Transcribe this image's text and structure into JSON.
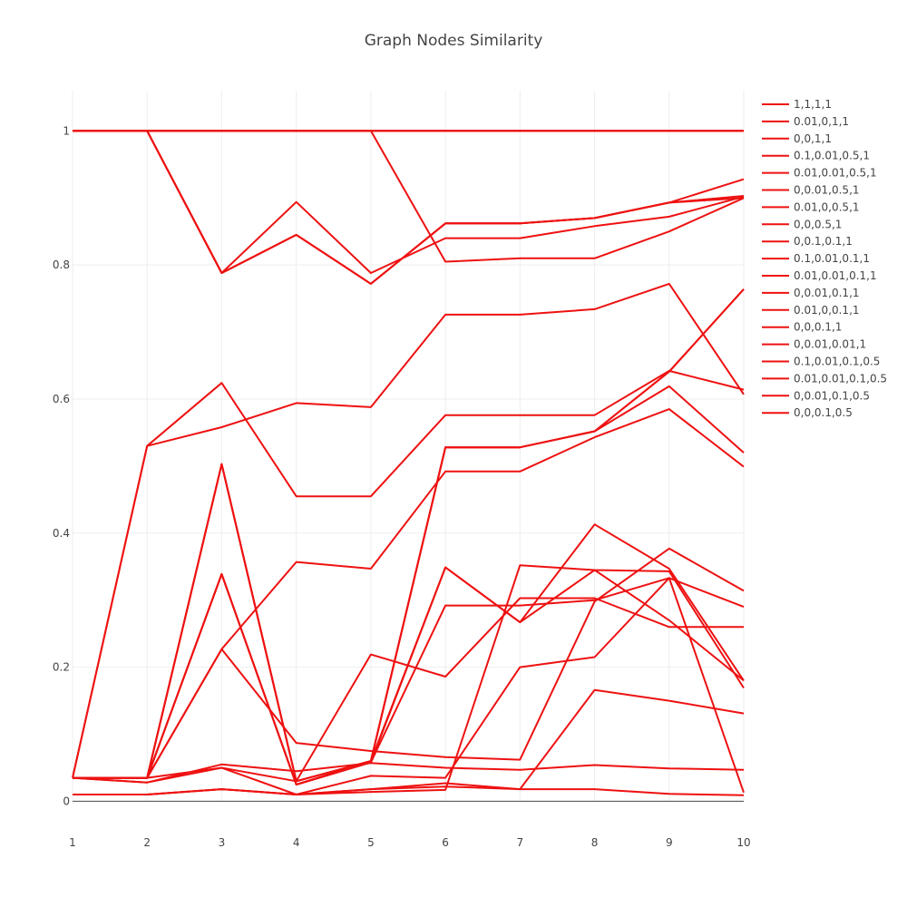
{
  "chart_data": {
    "type": "line",
    "title": "Graph Nodes Similarity",
    "xlabel": "",
    "ylabel": "",
    "x": [
      1,
      2,
      3,
      4,
      5,
      6,
      7,
      8,
      9,
      10
    ],
    "xlim": [
      1,
      10
    ],
    "ylim": [
      -0.04,
      1.06
    ],
    "x_ticks": [
      "1",
      "2",
      "3",
      "4",
      "5",
      "6",
      "7",
      "8",
      "9",
      "10"
    ],
    "y_ticks": [
      {
        "value": 0,
        "label": "0"
      },
      {
        "value": 0.2,
        "label": "0.2"
      },
      {
        "value": 0.4,
        "label": "0.4"
      },
      {
        "value": 0.6,
        "label": "0.6"
      },
      {
        "value": 0.8,
        "label": "0.8"
      },
      {
        "value": 1,
        "label": "1"
      }
    ],
    "grid": true,
    "legend_position": "right",
    "line_color": "#ee1111",
    "series": [
      {
        "name": "1,1,1,1",
        "values": [
          1,
          1,
          1,
          1,
          1,
          1,
          1,
          1,
          1,
          1
        ]
      },
      {
        "name": "0.01,0,1,1",
        "values": [
          1,
          1,
          1,
          1,
          1,
          1,
          1,
          1,
          1,
          1
        ]
      },
      {
        "name": "0,0,1,1",
        "values": [
          1,
          1,
          1,
          1,
          1,
          1,
          1,
          1,
          1,
          1
        ]
      },
      {
        "name": "0.1,0.01,0.5,1",
        "values": [
          1,
          1,
          1,
          1,
          1,
          0.805,
          0.81,
          0.81,
          0.85,
          0.9
        ]
      },
      {
        "name": "0.01,0.01,0.5,1",
        "values": [
          1,
          1,
          0.788,
          0.845,
          0.772,
          0.862,
          0.862,
          0.87,
          0.893,
          0.9
        ]
      },
      {
        "name": "0,0.01,0.5,1",
        "values": [
          1,
          1,
          0.788,
          0.845,
          0.772,
          0.862,
          0.862,
          0.87,
          0.893,
          0.928
        ]
      },
      {
        "name": "0.01,0,0.5,1",
        "values": [
          1,
          1,
          0.788,
          0.894,
          0.788,
          0.84,
          0.84,
          0.858,
          0.872,
          0.902
        ]
      },
      {
        "name": "0,0,0.5,1",
        "values": [
          1,
          1,
          0.788,
          0.845,
          0.772,
          0.862,
          0.862,
          0.87,
          0.893,
          0.903
        ]
      },
      {
        "name": "0,0.1,0.1,1",
        "values": [
          0.035,
          0.53,
          0.558,
          0.594,
          0.588,
          0.726,
          0.726,
          0.734,
          0.772,
          0.607
        ]
      },
      {
        "name": "0.1,0.01,0.1,1",
        "values": [
          0.035,
          0.53,
          0.624,
          0.455,
          0.455,
          0.576,
          0.576,
          0.576,
          0.642,
          0.614
        ]
      },
      {
        "name": "0.01,0.01,0.1,1",
        "values": [
          0.035,
          0.035,
          0.503,
          0.03,
          0.06,
          0.528,
          0.528,
          0.552,
          0.619,
          0.52
        ]
      },
      {
        "name": "0,0.01,0.1,1",
        "values": [
          0.035,
          0.035,
          0.503,
          0.03,
          0.06,
          0.528,
          0.528,
          0.552,
          0.641,
          0.764
        ]
      },
      {
        "name": "0.01,0,0.1,1",
        "values": [
          0.035,
          0.035,
          0.227,
          0.357,
          0.347,
          0.492,
          0.492,
          0.543,
          0.585,
          0.499
        ]
      },
      {
        "name": "0,0,0.1,1",
        "values": [
          0.035,
          0.035,
          0.503,
          0.03,
          0.06,
          0.528,
          0.528,
          0.552,
          0.641,
          0.764
        ]
      },
      {
        "name": "0,0.01,0.01,1",
        "values": [
          0.035,
          0.035,
          0.339,
          0.025,
          0.06,
          0.349,
          0.267,
          0.413,
          0.347,
          0.18
        ]
      },
      {
        "name": "0.1,0.01,0.1,0.5",
        "values": [
          0.035,
          0.035,
          0.227,
          0.087,
          0.075,
          0.066,
          0.062,
          0.298,
          0.377,
          0.314
        ]
      },
      {
        "name": "0.01,0.01,0.1,0.5",
        "values": [
          0.035,
          0.028,
          0.05,
          0.03,
          0.219,
          0.186,
          0.303,
          0.303,
          0.26,
          0.26
        ]
      },
      {
        "name": "0,0.01,0.1,0.5",
        "values": [
          0.01,
          0.01,
          0.018,
          0.01,
          0.014,
          0.017,
          0.352,
          0.345,
          0.343,
          0.169
        ]
      },
      {
        "name": "0,0,0.1,0.5",
        "values": [
          0.01,
          0.01,
          0.018,
          0.01,
          0.018,
          0.022,
          0.018,
          0.018,
          0.011,
          0.009
        ]
      }
    ],
    "extra_traces": [
      [
        0.035,
        0.028,
        0.055,
        0.045,
        0.057,
        0.05,
        0.047,
        0.054,
        0.049,
        0.047
      ],
      [
        0.035,
        0.035,
        0.05,
        0.01,
        0.038,
        0.035,
        0.2,
        0.215,
        0.333,
        0.013
      ],
      [
        0.01,
        0.01,
        0.018,
        0.01,
        0.018,
        0.027,
        0.018,
        0.166,
        0.15,
        0.131
      ],
      [
        0.035,
        0.035,
        0.339,
        0.025,
        0.058,
        0.292,
        0.292,
        0.3,
        0.333,
        0.29
      ],
      [
        0.035,
        0.035,
        0.339,
        0.025,
        0.058,
        0.349,
        0.267,
        0.345,
        0.27,
        0.18
      ]
    ]
  }
}
